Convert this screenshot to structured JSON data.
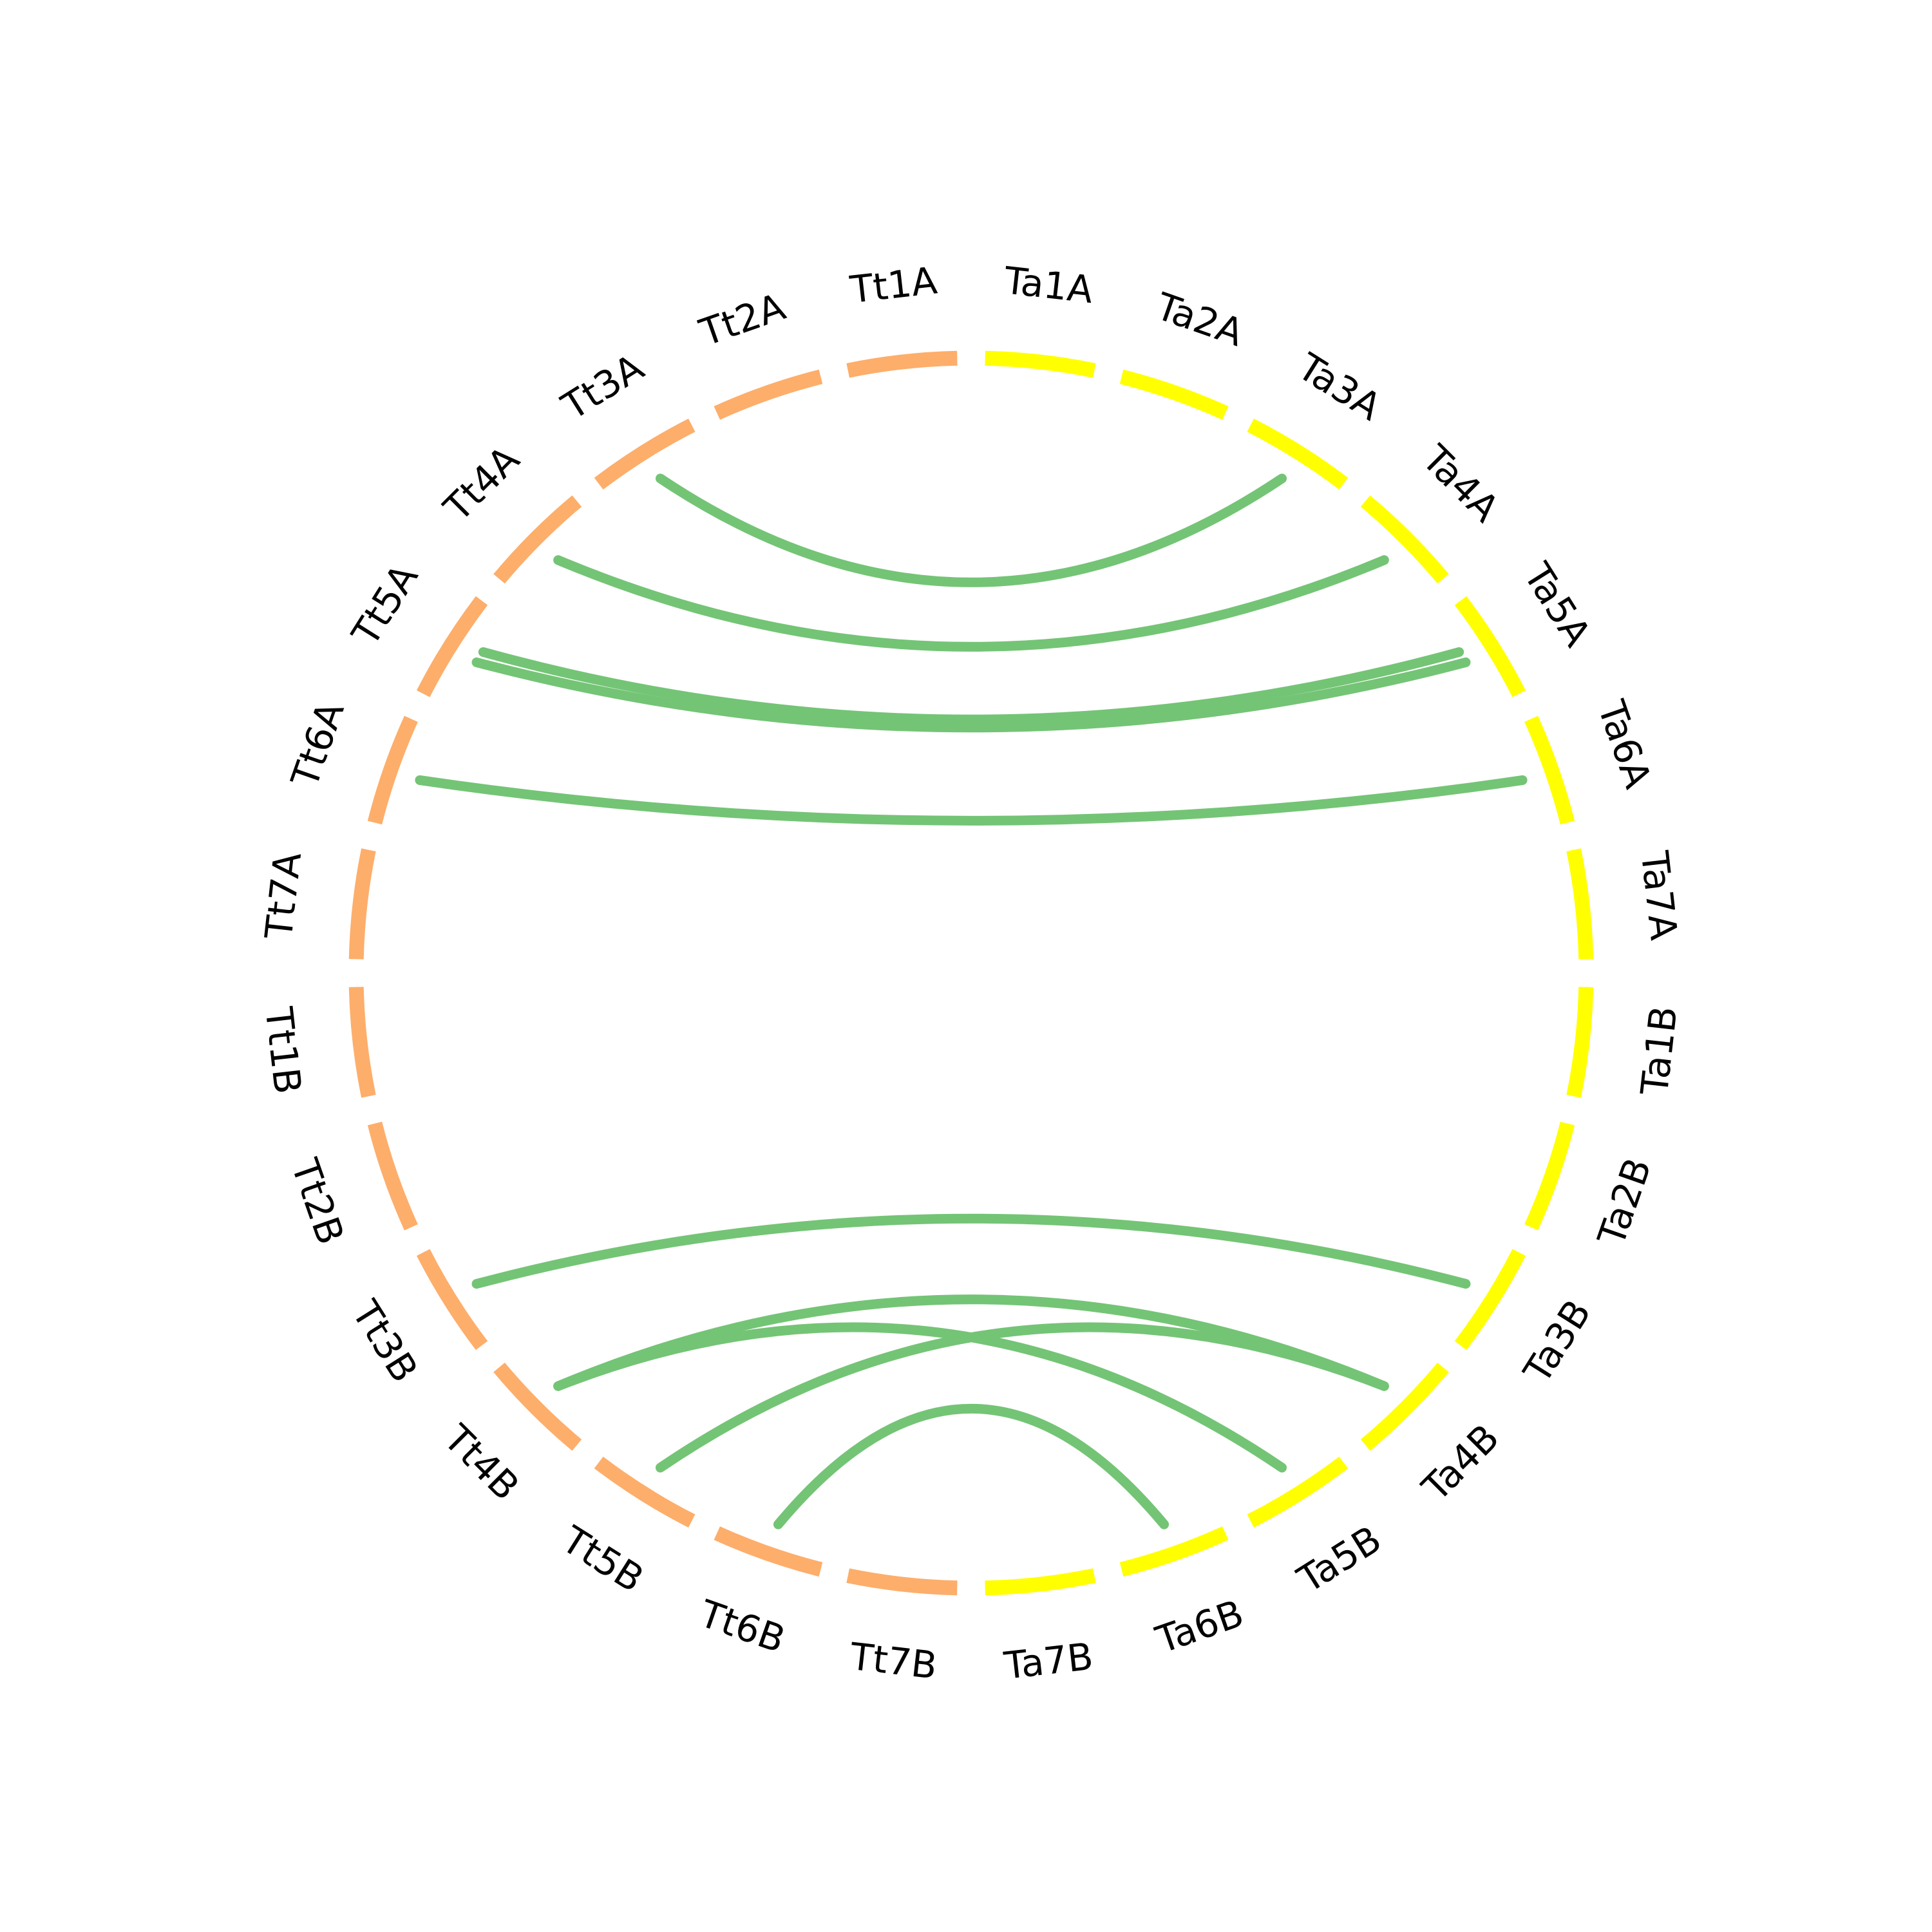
{
  "colors": {
    "tt_chromosome": "#FDAE6B",
    "ta_chromosome": "#FFFF00",
    "link": "#74C476",
    "label": "#000000"
  },
  "chromosomes": [
    {
      "name": "Ta1A",
      "group": "Ta"
    },
    {
      "name": "Ta2A",
      "group": "Ta"
    },
    {
      "name": "Ta3A",
      "group": "Ta"
    },
    {
      "name": "Ta4A",
      "group": "Ta"
    },
    {
      "name": "Ta5A",
      "group": "Ta"
    },
    {
      "name": "Ta6A",
      "group": "Ta"
    },
    {
      "name": "Ta7A",
      "group": "Ta"
    },
    {
      "name": "Ta1B",
      "group": "Ta"
    },
    {
      "name": "Ta2B",
      "group": "Ta"
    },
    {
      "name": "Ta3B",
      "group": "Ta"
    },
    {
      "name": "Ta4B",
      "group": "Ta"
    },
    {
      "name": "Ta5B",
      "group": "Ta"
    },
    {
      "name": "Ta6B",
      "group": "Ta"
    },
    {
      "name": "Ta7B",
      "group": "Ta"
    },
    {
      "name": "Tt7B",
      "group": "Tt"
    },
    {
      "name": "Tt6B",
      "group": "Tt"
    },
    {
      "name": "Tt5B",
      "group": "Tt"
    },
    {
      "name": "Tt4B",
      "group": "Tt"
    },
    {
      "name": "Tt3B",
      "group": "Tt"
    },
    {
      "name": "Tt2B",
      "group": "Tt"
    },
    {
      "name": "Tt1B",
      "group": "Tt"
    },
    {
      "name": "Tt7A",
      "group": "Tt"
    },
    {
      "name": "Tt6A",
      "group": "Tt"
    },
    {
      "name": "Tt5A",
      "group": "Tt"
    },
    {
      "name": "Tt4A",
      "group": "Tt"
    },
    {
      "name": "Tt3A",
      "group": "Tt"
    },
    {
      "name": "Tt2A",
      "group": "Tt"
    },
    {
      "name": "Tt1A",
      "group": "Tt"
    }
  ],
  "links": [
    {
      "from": "Tt3A",
      "to": "Ta3A"
    },
    {
      "from": "Tt4A",
      "to": "Ta4A"
    },
    {
      "from": "Tt5A",
      "to": "Ta5A"
    },
    {
      "from": "Tt5A",
      "to": "Ta5A"
    },
    {
      "from": "Tt6A",
      "to": "Ta6A"
    },
    {
      "from": "Tt3B",
      "to": "Ta3B"
    },
    {
      "from": "Tt4B",
      "to": "Ta4B"
    },
    {
      "from": "Tt4B",
      "to": "Ta5B"
    },
    {
      "from": "Tt5B",
      "to": "Ta4B"
    },
    {
      "from": "Tt6B",
      "to": "Ta6B"
    }
  ]
}
